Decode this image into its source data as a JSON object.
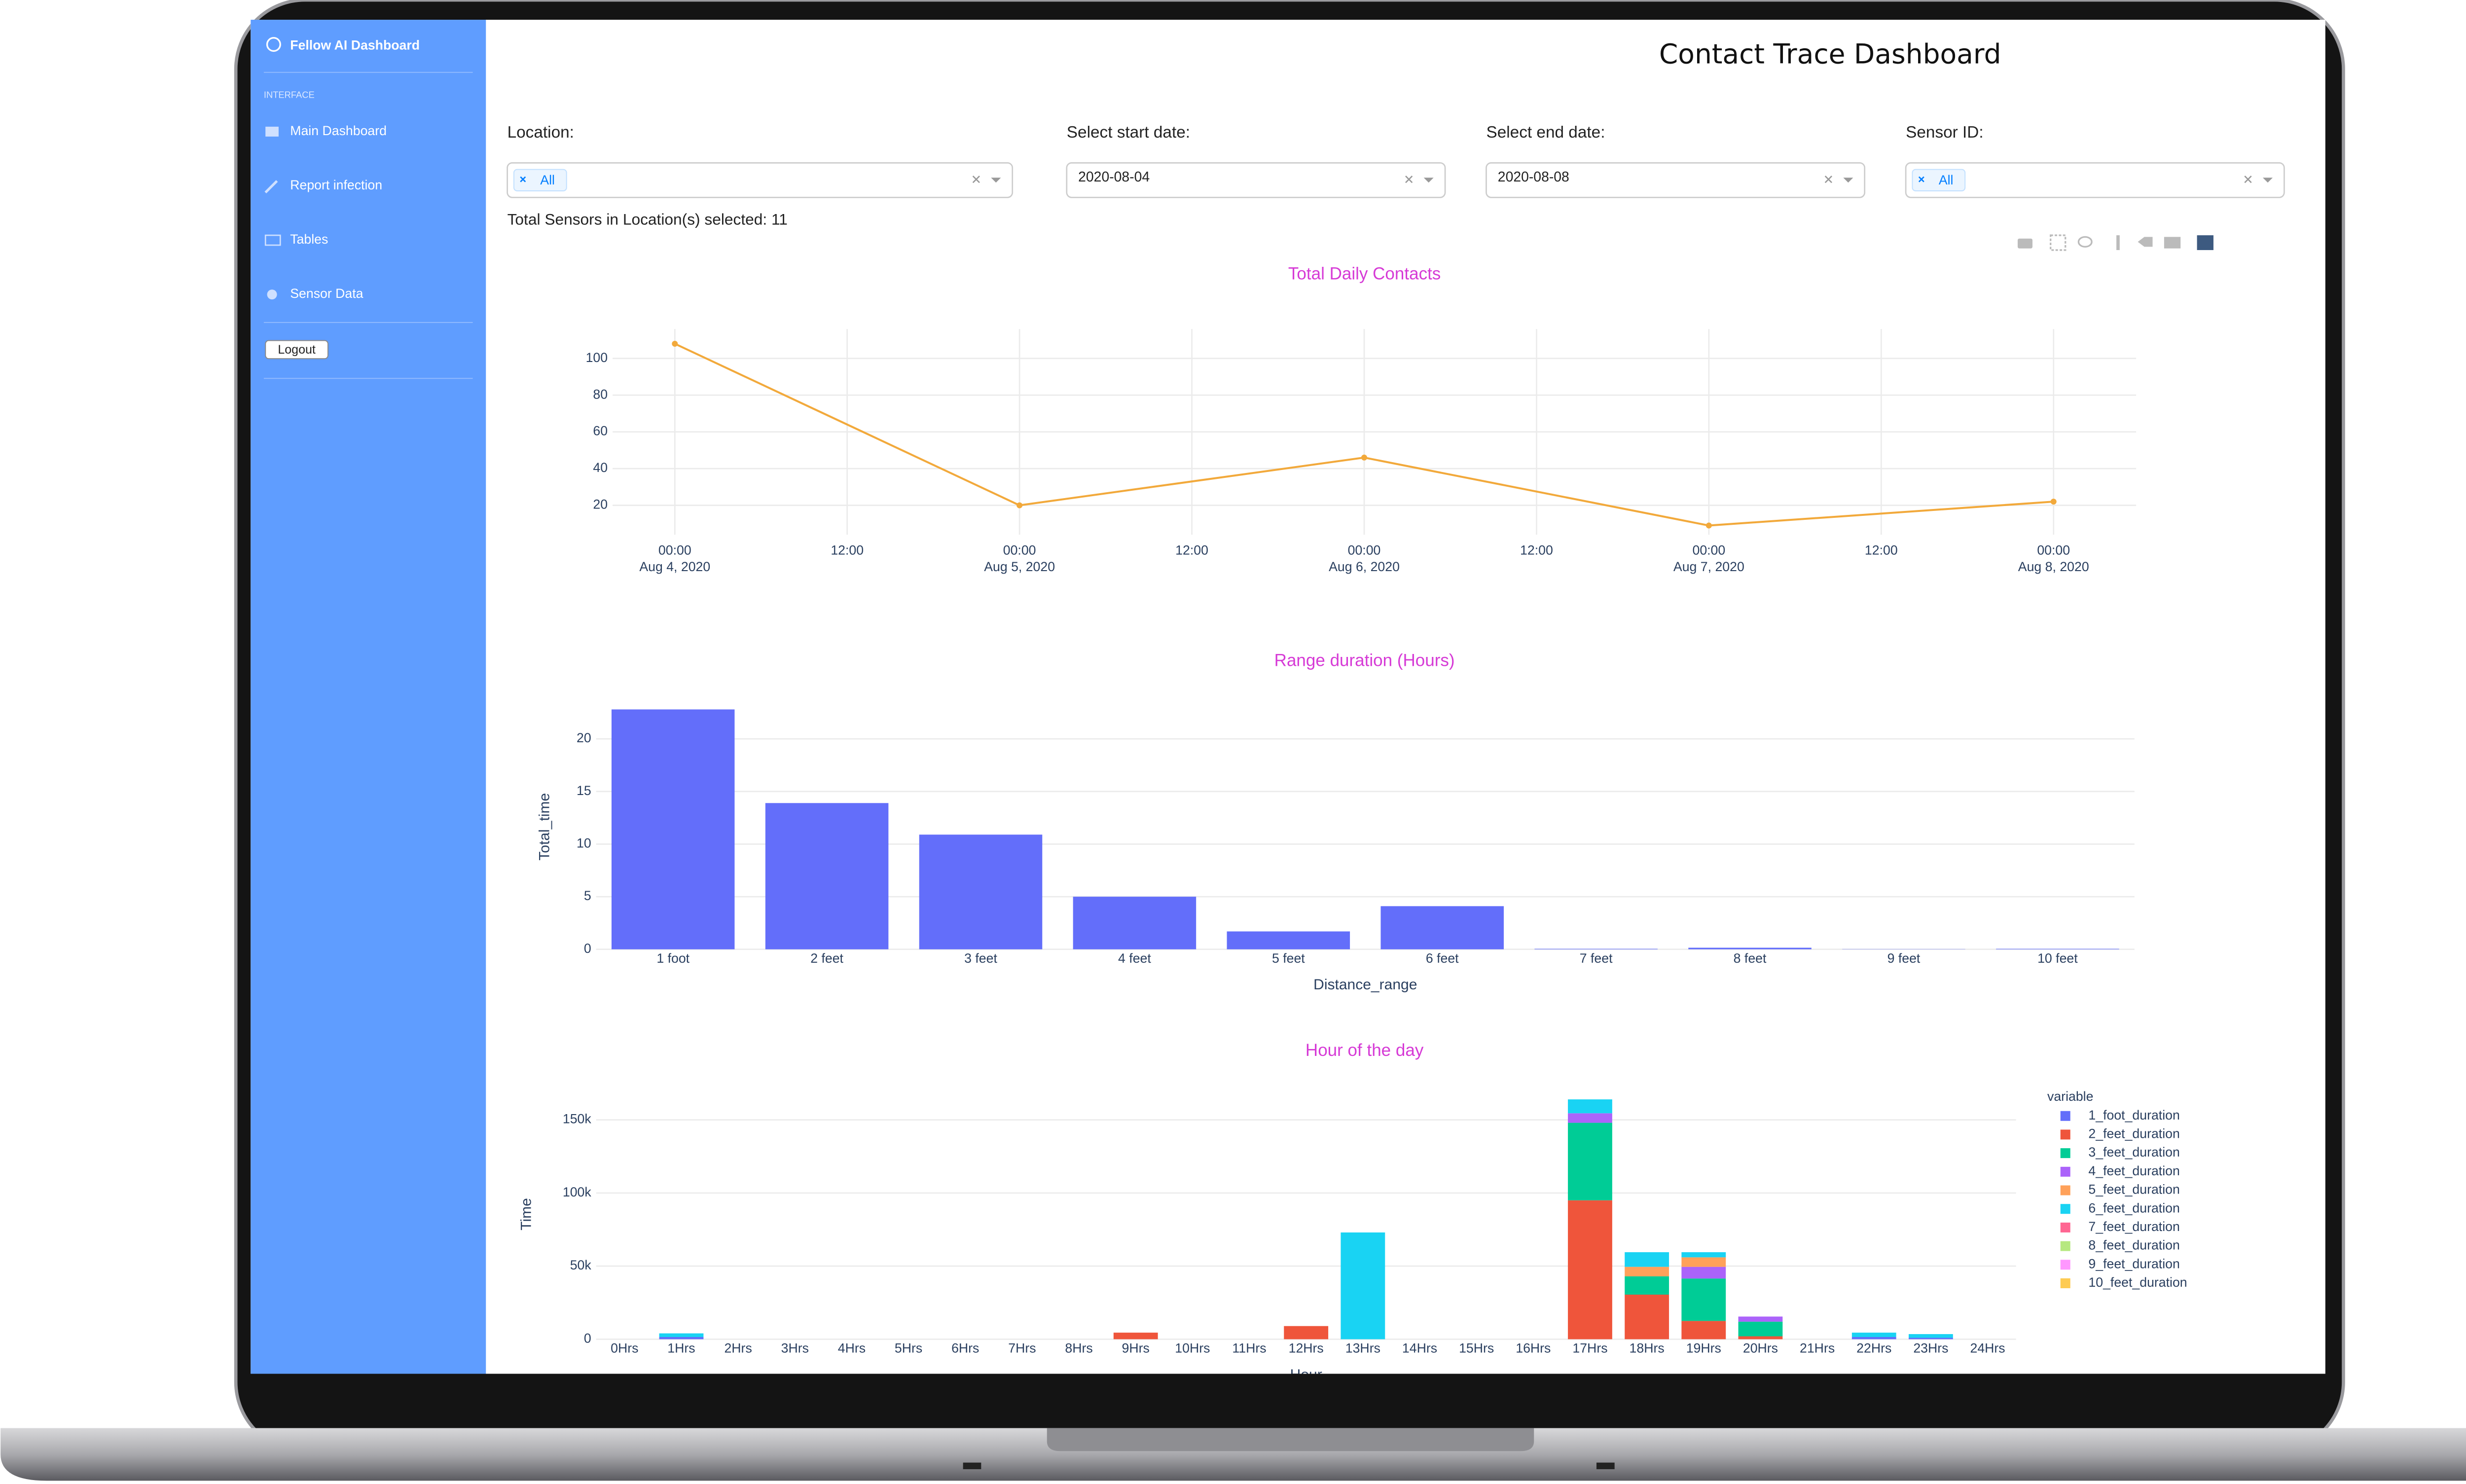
{
  "sidebar": {
    "brand": "Fellow AI Dashboard",
    "section": "INTERFACE",
    "items": [
      "Main Dashboard",
      "Report infection",
      "Tables",
      "Sensor Data"
    ],
    "logout": "Logout"
  },
  "header": {
    "title": "Contact Trace Dashboard"
  },
  "filters": [
    {
      "label": "Location:",
      "chip": "All"
    },
    {
      "label": "Select start date:",
      "value": "2020-08-04"
    },
    {
      "label": "Select end date:",
      "value": "2020-08-08"
    },
    {
      "label": "Sensor ID:",
      "chip": "All"
    }
  ],
  "summary": "Total Sensors in Location(s) selected: 11",
  "chart_data": [
    {
      "type": "line",
      "title": "Total Daily Contacts",
      "x": [
        "2020-08-04",
        "2020-08-05",
        "2020-08-06",
        "2020-08-07",
        "2020-08-08"
      ],
      "values": [
        108,
        20,
        46,
        9,
        22
      ],
      "color": "#f2a93b",
      "xlim": [
        "2020-08-03T19:40",
        "2020-08-08T05:45"
      ],
      "xticks": [
        {
          "value": "2020-08-04T00:00",
          "label": "00:00\nAug 4, 2020"
        },
        {
          "value": "2020-08-04T12:00",
          "label": "12:00"
        },
        {
          "value": "2020-08-05T00:00",
          "label": "00:00\nAug 5, 2020"
        },
        {
          "value": "2020-08-05T12:00",
          "label": "12:00"
        },
        {
          "value": "2020-08-06T00:00",
          "label": "00:00\nAug 6, 2020"
        },
        {
          "value": "2020-08-06T12:00",
          "label": "12:00"
        },
        {
          "value": "2020-08-07T00:00",
          "label": "00:00\nAug 7, 2020"
        },
        {
          "value": "2020-08-07T12:00",
          "label": "12:00"
        },
        {
          "value": "2020-08-08T00:00",
          "label": "00:00\nAug 8, 2020"
        }
      ],
      "ylim": [
        4,
        116
      ],
      "yticks": [
        20,
        40,
        60,
        80,
        100
      ],
      "grid": true
    },
    {
      "type": "bar",
      "title": "Range duration (Hours)",
      "xlabel": "Distance_range",
      "ylabel": "Total_time",
      "categories": [
        "1 foot",
        "2 feet",
        "3 feet",
        "4 feet",
        "5 feet",
        "6 feet",
        "7 feet",
        "8 feet",
        "9 feet",
        "10 feet"
      ],
      "values": [
        22.8,
        13.9,
        10.9,
        5.0,
        1.7,
        4.1,
        0.05,
        0.15,
        0.02,
        0.05
      ],
      "color": "#636efa",
      "ylim": [
        0,
        23.3
      ],
      "yticks": [
        0,
        5,
        10,
        15,
        20
      ],
      "grid": true
    },
    {
      "type": "bar",
      "barmode": "stack",
      "title": "Hour of the day",
      "xlabel": "Hour",
      "ylabel": "Time",
      "categories": [
        "0Hrs",
        "1Hrs",
        "2Hrs",
        "3Hrs",
        "4Hrs",
        "5Hrs",
        "6Hrs",
        "7Hrs",
        "8Hrs",
        "9Hrs",
        "10Hrs",
        "11Hrs",
        "12Hrs",
        "13Hrs",
        "14Hrs",
        "15Hrs",
        "16Hrs",
        "17Hrs",
        "18Hrs",
        "19Hrs",
        "20Hrs",
        "21Hrs",
        "22Hrs",
        "23Hrs",
        "24Hrs"
      ],
      "legend_title": "variable",
      "legend": "right",
      "series": [
        {
          "name": "1_foot_duration",
          "color": "#636efa",
          "values": [
            0,
            1500,
            0,
            0,
            0,
            0,
            0,
            0,
            0,
            0,
            0,
            0,
            0,
            0,
            0,
            0,
            0,
            0,
            0,
            0,
            0,
            0,
            1500,
            1000,
            0
          ]
        },
        {
          "name": "2_feet_duration",
          "color": "#ef553b",
          "values": [
            0,
            0,
            0,
            0,
            0,
            0,
            0,
            0,
            0,
            4500,
            0,
            0,
            9000,
            0,
            0,
            0,
            0,
            95000,
            30500,
            12500,
            2000,
            0,
            0,
            0,
            0
          ]
        },
        {
          "name": "3_feet_duration",
          "color": "#00cc96",
          "values": [
            0,
            0,
            0,
            0,
            0,
            0,
            0,
            0,
            0,
            0,
            0,
            0,
            0,
            0,
            0,
            0,
            0,
            53000,
            12500,
            29000,
            10000,
            0,
            0,
            0,
            0
          ]
        },
        {
          "name": "4_feet_duration",
          "color": "#ab63fa",
          "values": [
            0,
            0,
            0,
            0,
            0,
            0,
            0,
            0,
            0,
            0,
            0,
            0,
            0,
            0,
            0,
            0,
            0,
            6500,
            0,
            8000,
            3500,
            0,
            0,
            0,
            0
          ]
        },
        {
          "name": "5_feet_duration",
          "color": "#ffa15a",
          "values": [
            0,
            0,
            0,
            0,
            0,
            0,
            0,
            0,
            0,
            0,
            0,
            0,
            0,
            0,
            0,
            0,
            0,
            0,
            6500,
            6500,
            0,
            0,
            0,
            0,
            0
          ]
        },
        {
          "name": "6_feet_duration",
          "color": "#19d3f3",
          "values": [
            0,
            2500,
            0,
            0,
            0,
            0,
            0,
            0,
            0,
            0,
            0,
            0,
            0,
            73000,
            0,
            0,
            0,
            9500,
            10000,
            3500,
            0,
            0,
            3000,
            2500,
            0
          ]
        },
        {
          "name": "7_feet_duration",
          "color": "#ff6692",
          "values": [
            0,
            0,
            0,
            0,
            0,
            0,
            0,
            0,
            0,
            0,
            0,
            0,
            0,
            0,
            0,
            0,
            0,
            0,
            0,
            0,
            0,
            0,
            0,
            0,
            0
          ]
        },
        {
          "name": "8_feet_duration",
          "color": "#b6e880",
          "values": [
            0,
            0,
            0,
            0,
            0,
            0,
            0,
            0,
            0,
            0,
            0,
            0,
            0,
            0,
            0,
            0,
            0,
            0,
            0,
            0,
            0,
            0,
            0,
            0,
            0
          ]
        },
        {
          "name": "9_feet_duration",
          "color": "#ff97ff",
          "values": [
            0,
            0,
            0,
            0,
            0,
            0,
            0,
            0,
            0,
            0,
            0,
            0,
            0,
            0,
            0,
            0,
            0,
            0,
            0,
            0,
            0,
            0,
            0,
            0,
            0
          ]
        },
        {
          "name": "10_feet_duration",
          "color": "#fecb52",
          "values": [
            0,
            0,
            0,
            0,
            0,
            0,
            0,
            0,
            0,
            0,
            0,
            0,
            0,
            0,
            0,
            0,
            0,
            0,
            0,
            0,
            0,
            0,
            0,
            0,
            0
          ]
        }
      ],
      "ylim": [
        0,
        171000
      ],
      "yticks": [
        0,
        {
          "value": 50000,
          "label": "50k"
        },
        {
          "value": 100000,
          "label": "100k"
        },
        {
          "value": 150000,
          "label": "150k"
        }
      ],
      "grid": true
    }
  ]
}
